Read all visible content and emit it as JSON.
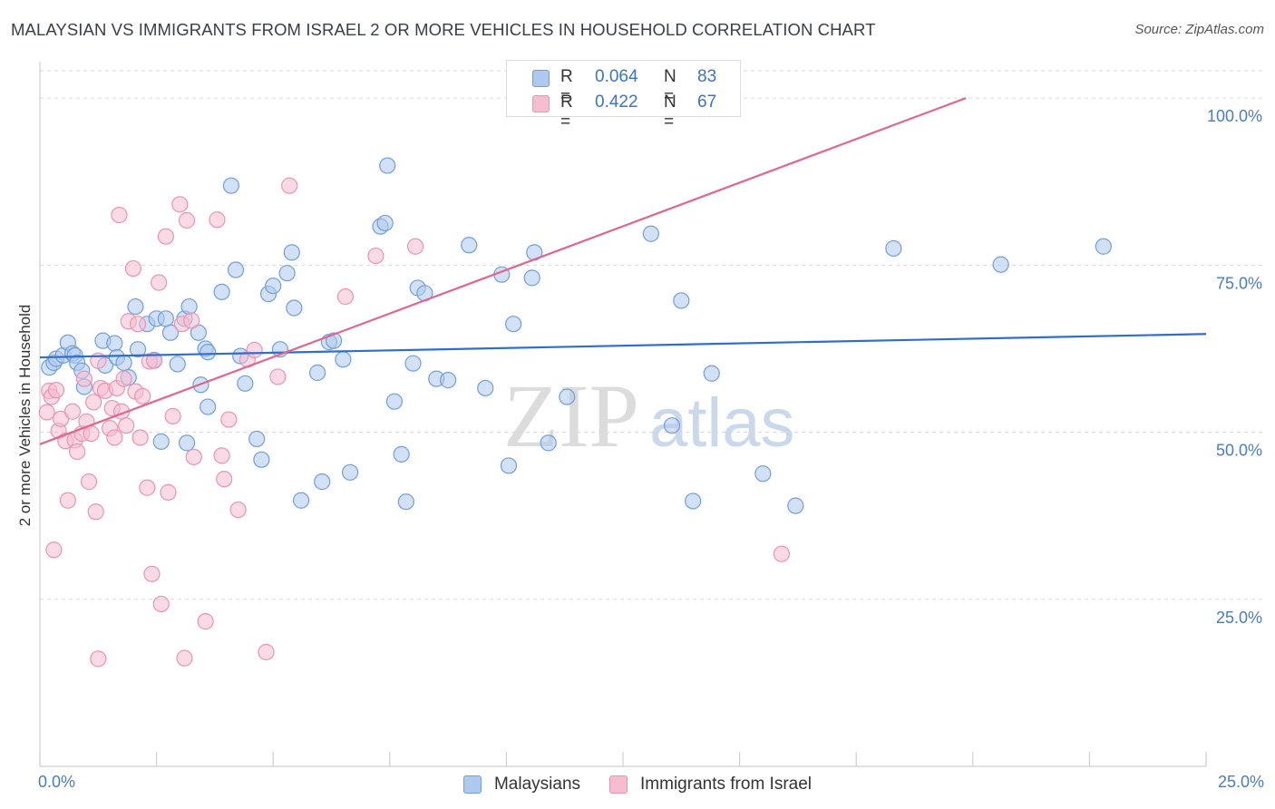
{
  "header": {
    "title": "MALAYSIAN VS IMMIGRANTS FROM ISRAEL 2 OR MORE VEHICLES IN HOUSEHOLD CORRELATION CHART",
    "source": "Source: ZipAtlas.com"
  },
  "stats": {
    "rows": [
      {
        "r_label": "R =",
        "r_value": "0.064",
        "n_label": "N =",
        "n_value": "83"
      },
      {
        "r_label": "R =",
        "r_value": "0.422",
        "n_label": "N =",
        "n_value": "67"
      }
    ]
  },
  "legend": {
    "items": [
      {
        "label": "Malaysians"
      },
      {
        "label": "Immigrants from Israel"
      }
    ]
  },
  "watermark": {
    "zip": "ZIP",
    "atlas": "atlas"
  },
  "colors": {
    "blue_fill": "#aec9ef",
    "blue_stroke": "#6f9fdd",
    "blue_line": "#2f6ecb",
    "pink_fill": "#f6bdd0",
    "pink_stroke": "#ec93b1",
    "pink_line": "#e0668f",
    "tick_label": "#4a7cc2",
    "grid": "#d9d9d9"
  },
  "chart_data": {
    "type": "scatter",
    "title": "MALAYSIAN VS IMMIGRANTS FROM ISRAEL 2 OR MORE VEHICLES IN HOUSEHOLD CORRELATION CHART",
    "xlabel": "",
    "ylabel": "2 or more Vehicles in Household",
    "xlim": [
      0,
      25
    ],
    "ylim": [
      0,
      104.5
    ],
    "x_tick_labels": [
      "0.0%",
      "25.0%"
    ],
    "y_ticks": [
      25,
      50,
      75,
      100
    ],
    "y_tick_labels": [
      "25.0%",
      "50.0%",
      "75.0%",
      "100.0%"
    ],
    "grid": true,
    "series": [
      {
        "name": "Malaysians",
        "color": "blue",
        "trend": {
          "x0": 0,
          "y0": 61.2,
          "x1": 25,
          "y1": 64.7
        },
        "points": [
          [
            0.2,
            59.7
          ],
          [
            0.3,
            60.4
          ],
          [
            0.35,
            61.0
          ],
          [
            0.5,
            61.5
          ],
          [
            0.6,
            63.4
          ],
          [
            0.7,
            61.8
          ],
          [
            0.75,
            61.5
          ],
          [
            0.8,
            60.4
          ],
          [
            0.9,
            59.2
          ],
          [
            0.95,
            56.8
          ],
          [
            1.35,
            63.7
          ],
          [
            1.4,
            60.0
          ],
          [
            1.6,
            63.3
          ],
          [
            1.65,
            61.2
          ],
          [
            1.8,
            60.4
          ],
          [
            1.9,
            58.2
          ],
          [
            2.05,
            68.8
          ],
          [
            2.1,
            62.4
          ],
          [
            2.3,
            66.2
          ],
          [
            2.45,
            60.8
          ],
          [
            2.5,
            67.0
          ],
          [
            2.6,
            48.6
          ],
          [
            2.7,
            67.0
          ],
          [
            2.8,
            64.9
          ],
          [
            2.95,
            60.2
          ],
          [
            3.1,
            67.0
          ],
          [
            3.15,
            48.4
          ],
          [
            3.2,
            68.8
          ],
          [
            3.4,
            64.9
          ],
          [
            3.45,
            57.1
          ],
          [
            3.55,
            62.5
          ],
          [
            3.6,
            53.8
          ],
          [
            3.9,
            71.0
          ],
          [
            4.1,
            86.9
          ],
          [
            4.2,
            74.3
          ],
          [
            4.3,
            61.4
          ],
          [
            4.4,
            57.3
          ],
          [
            4.65,
            49.0
          ],
          [
            4.75,
            45.9
          ],
          [
            4.9,
            70.7
          ],
          [
            5.0,
            71.9
          ],
          [
            5.15,
            62.4
          ],
          [
            5.3,
            73.8
          ],
          [
            5.4,
            76.9
          ],
          [
            5.6,
            39.8
          ],
          [
            5.95,
            58.9
          ],
          [
            5.45,
            68.6
          ],
          [
            6.05,
            42.6
          ],
          [
            6.2,
            63.5
          ],
          [
            6.5,
            60.9
          ],
          [
            6.65,
            44.0
          ],
          [
            7.3,
            80.8
          ],
          [
            7.4,
            81.3
          ],
          [
            7.45,
            89.9
          ],
          [
            7.6,
            54.6
          ],
          [
            7.75,
            46.7
          ],
          [
            7.85,
            39.6
          ],
          [
            8.0,
            60.3
          ],
          [
            8.1,
            71.6
          ],
          [
            8.25,
            70.8
          ],
          [
            8.5,
            58.0
          ],
          [
            8.75,
            57.8
          ],
          [
            9.2,
            78.0
          ],
          [
            9.55,
            56.6
          ],
          [
            9.9,
            73.6
          ],
          [
            10.05,
            45.0
          ],
          [
            10.15,
            66.2
          ],
          [
            10.55,
            73.1
          ],
          [
            10.6,
            76.9
          ],
          [
            10.9,
            48.4
          ],
          [
            11.3,
            55.3
          ],
          [
            13.1,
            79.7
          ],
          [
            13.55,
            51.0
          ],
          [
            13.75,
            69.7
          ],
          [
            14.0,
            39.7
          ],
          [
            14.4,
            58.8
          ],
          [
            15.5,
            43.8
          ],
          [
            16.2,
            39.0
          ],
          [
            18.3,
            77.5
          ],
          [
            20.6,
            75.1
          ],
          [
            22.8,
            77.8
          ],
          [
            6.3,
            63.7
          ],
          [
            3.6,
            62.0
          ]
        ]
      },
      {
        "name": "Immigrants from Israel",
        "color": "pink",
        "trend": {
          "x0": 0,
          "y0": 48.2,
          "x1": 19.85,
          "y1": 100.0
        },
        "points": [
          [
            0.15,
            53.0
          ],
          [
            0.2,
            56.2
          ],
          [
            0.25,
            55.3
          ],
          [
            0.3,
            32.4
          ],
          [
            0.35,
            56.3
          ],
          [
            0.4,
            50.2
          ],
          [
            0.45,
            52.0
          ],
          [
            0.55,
            48.7
          ],
          [
            0.6,
            39.8
          ],
          [
            0.7,
            53.1
          ],
          [
            0.75,
            48.8
          ],
          [
            0.8,
            47.1
          ],
          [
            0.9,
            49.8
          ],
          [
            0.95,
            58.0
          ],
          [
            1.0,
            51.6
          ],
          [
            1.05,
            42.6
          ],
          [
            1.1,
            49.8
          ],
          [
            1.15,
            54.5
          ],
          [
            1.2,
            38.1
          ],
          [
            1.25,
            60.7
          ],
          [
            1.3,
            56.6
          ],
          [
            1.4,
            56.2
          ],
          [
            1.5,
            50.6
          ],
          [
            1.55,
            53.6
          ],
          [
            1.6,
            49.2
          ],
          [
            1.65,
            56.6
          ],
          [
            1.7,
            82.5
          ],
          [
            1.75,
            53.1
          ],
          [
            1.8,
            58.0
          ],
          [
            1.85,
            51.0
          ],
          [
            1.9,
            66.6
          ],
          [
            2.0,
            74.5
          ],
          [
            2.05,
            56.1
          ],
          [
            2.1,
            66.2
          ],
          [
            2.15,
            49.2
          ],
          [
            2.2,
            55.4
          ],
          [
            2.3,
            41.7
          ],
          [
            2.35,
            60.6
          ],
          [
            2.45,
            60.7
          ],
          [
            2.55,
            72.4
          ],
          [
            2.6,
            24.3
          ],
          [
            2.7,
            79.3
          ],
          [
            2.75,
            41.0
          ],
          [
            2.85,
            52.4
          ],
          [
            3.0,
            84.1
          ],
          [
            3.05,
            66.2
          ],
          [
            3.15,
            81.7
          ],
          [
            3.25,
            66.7
          ],
          [
            3.3,
            46.3
          ],
          [
            3.55,
            21.7
          ],
          [
            3.8,
            81.8
          ],
          [
            3.9,
            46.5
          ],
          [
            3.95,
            43.0
          ],
          [
            4.05,
            51.9
          ],
          [
            4.25,
            38.4
          ],
          [
            4.45,
            60.9
          ],
          [
            4.6,
            62.3
          ],
          [
            4.85,
            17.1
          ],
          [
            5.1,
            58.3
          ],
          [
            5.35,
            86.9
          ],
          [
            6.55,
            70.3
          ],
          [
            7.2,
            76.4
          ],
          [
            8.05,
            77.8
          ],
          [
            2.4,
            28.8
          ],
          [
            1.25,
            16.1
          ],
          [
            3.1,
            16.2
          ],
          [
            15.9,
            31.8
          ]
        ]
      }
    ]
  }
}
